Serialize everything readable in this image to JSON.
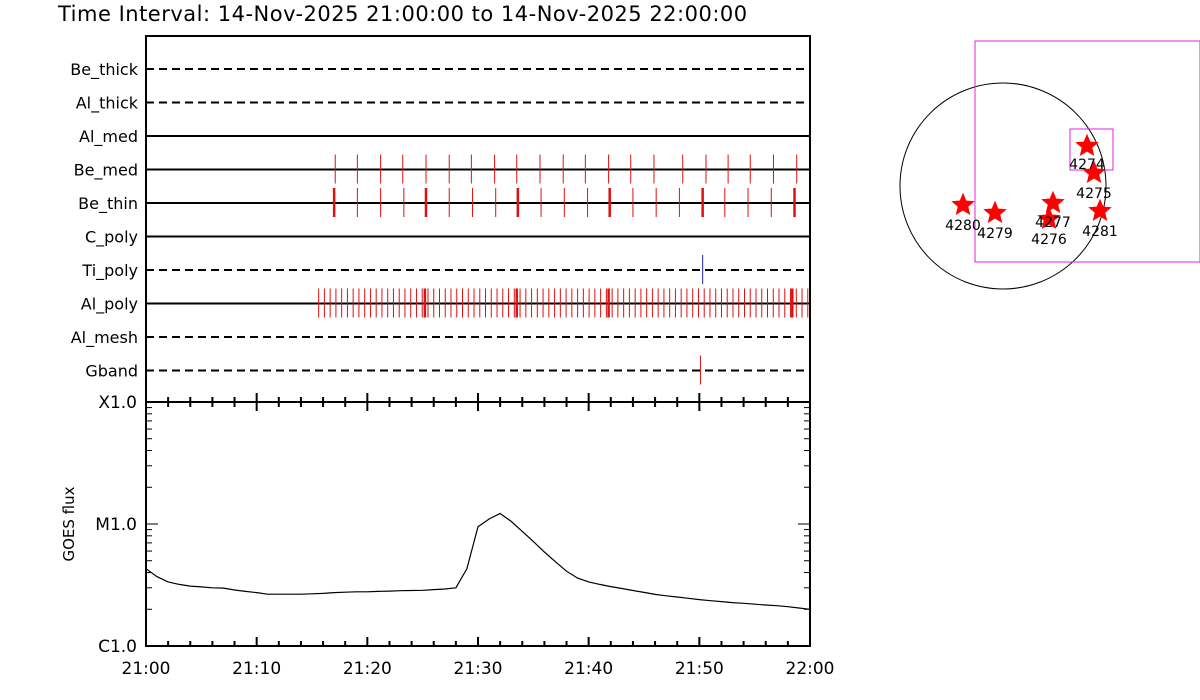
{
  "title": "Time Interval: 14-Nov-2025 21:00:00 to 14-Nov-2025 22:00:00",
  "chart_data": [
    {
      "type": "event-timeline",
      "x_range": [
        "21:00",
        "22:00"
      ],
      "filters": [
        {
          "name": "Be_thick",
          "line": "dashed",
          "marks": []
        },
        {
          "name": "Al_thick",
          "line": "dashed",
          "marks": []
        },
        {
          "name": "Al_med",
          "line": "solid",
          "marks": []
        },
        {
          "name": "Be_med",
          "line": "solid",
          "marks": [
            17.1,
            19.1,
            21.2,
            23.2,
            25.3,
            27.4,
            29.4,
            31.5,
            33.5,
            35.6,
            37.7,
            39.7,
            41.8,
            43.8,
            45.9,
            48.5,
            50.6,
            52.6,
            54.6,
            56.7,
            58.8
          ]
        },
        {
          "name": "Be_thin",
          "line": "solid",
          "marks": [
            17.0,
            19.1,
            21.2,
            23.3,
            25.3,
            27.4,
            29.5,
            31.6,
            33.6,
            35.7,
            37.8,
            39.9,
            41.9,
            44.0,
            46.1,
            48.2,
            50.3,
            52.3,
            54.4,
            56.5,
            58.6
          ],
          "heavy_marks": [
            17.0,
            25.3,
            33.6,
            41.9,
            50.3,
            58.6
          ]
        },
        {
          "name": "C_poly",
          "line": "solid",
          "marks": []
        },
        {
          "name": "Ti_poly",
          "line": "dashed",
          "marks": [
            50.3
          ],
          "mark_color": "#1f1fa8"
        },
        {
          "name": "Al_poly",
          "line": "solid",
          "marks_range": {
            "start": 15.6,
            "end": 60.0,
            "step": 0.52
          },
          "heavy_marks": [
            25.2,
            33.5,
            41.8,
            58.4
          ]
        },
        {
          "name": "Al_mesh",
          "line": "dashed",
          "marks": []
        },
        {
          "name": "Gband",
          "line": "dashed",
          "marks": [
            50.1
          ]
        }
      ]
    },
    {
      "type": "line",
      "ylabel": "GOES flux",
      "scale": "log",
      "ytick_labels": [
        "C1.0",
        "M1.0",
        "X1.0"
      ],
      "ylim": [
        1e-06,
        0.0001
      ],
      "xtick_labels": [
        "21:00",
        "21:10",
        "21:20",
        "21:30",
        "21:40",
        "21:50",
        "22:00"
      ],
      "series": [
        {
          "x_minutes": [
            0,
            1,
            2,
            3,
            4,
            5,
            6,
            7,
            8,
            9,
            10,
            11,
            12,
            13,
            14,
            15,
            16,
            17,
            18,
            19,
            20,
            21,
            22,
            23,
            24,
            25,
            26,
            27,
            28,
            29,
            30,
            31,
            32,
            33,
            34,
            35,
            36,
            37,
            38,
            39,
            40,
            41,
            42,
            43,
            44,
            45,
            46,
            47,
            48,
            49,
            50,
            51,
            52,
            53,
            54,
            55,
            56,
            57,
            58,
            59,
            60
          ],
          "values": [
            4.3e-06,
            3.7e-06,
            3.35e-06,
            3.2e-06,
            3.1e-06,
            3.05e-06,
            3e-06,
            2.98e-06,
            2.88e-06,
            2.8e-06,
            2.74e-06,
            2.66e-06,
            2.66e-06,
            2.66e-06,
            2.66e-06,
            2.68e-06,
            2.7e-06,
            2.74e-06,
            2.76e-06,
            2.78e-06,
            2.78e-06,
            2.8e-06,
            2.82e-06,
            2.84e-06,
            2.85e-06,
            2.86e-06,
            2.9e-06,
            2.93e-06,
            3e-06,
            4.3e-06,
            9.5e-06,
            1.1e-05,
            1.22e-05,
            1.05e-05,
            8.7e-06,
            7.2e-06,
            5.9e-06,
            4.9e-06,
            4.1e-06,
            3.6e-06,
            3.35e-06,
            3.2e-06,
            3.07e-06,
            2.96e-06,
            2.85e-06,
            2.75e-06,
            2.65e-06,
            2.58e-06,
            2.52e-06,
            2.46e-06,
            2.4e-06,
            2.35e-06,
            2.31e-06,
            2.27e-06,
            2.24e-06,
            2.2e-06,
            2.17e-06,
            2.14e-06,
            2.1e-06,
            2.05e-06,
            2e-06
          ]
        }
      ]
    },
    {
      "type": "scatter",
      "description": "Solar disk with active regions",
      "points": [
        {
          "label": "4274"
        },
        {
          "label": "4275"
        },
        {
          "label": "4276"
        },
        {
          "label": "4277"
        },
        {
          "label": "4279"
        },
        {
          "label": "4280"
        },
        {
          "label": "4281"
        }
      ]
    }
  ]
}
